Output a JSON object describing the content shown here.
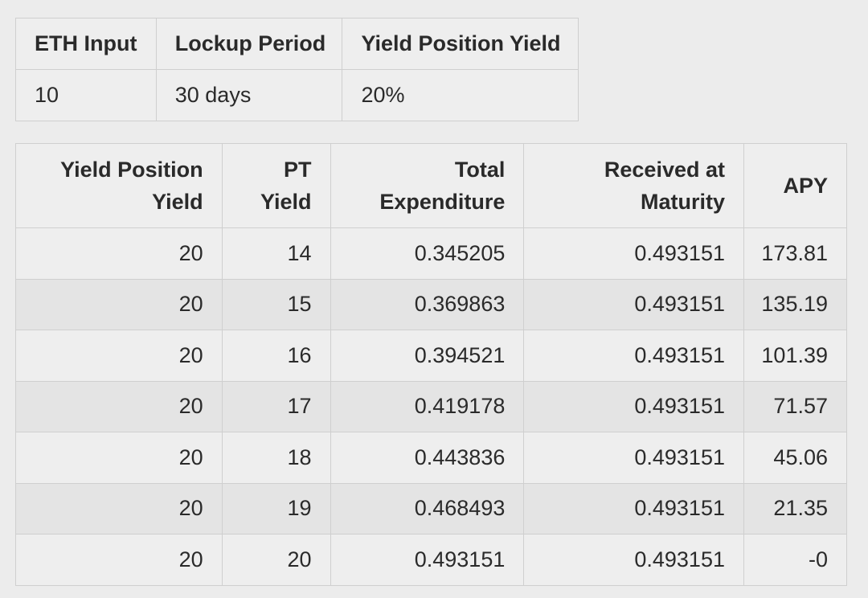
{
  "summary": {
    "headers": [
      "ETH Input",
      "Lockup Period",
      "Yield Position Yield"
    ],
    "values": [
      "10",
      "30 days",
      "20%"
    ]
  },
  "results": {
    "headers": [
      [
        "Yield Position",
        "Yield"
      ],
      [
        "PT",
        "Yield"
      ],
      [
        "Total",
        "Expenditure"
      ],
      [
        "Received at",
        "Maturity"
      ],
      [
        "APY"
      ]
    ],
    "rows": [
      [
        "20",
        "14",
        "0.345205",
        "0.493151",
        "173.81"
      ],
      [
        "20",
        "15",
        "0.369863",
        "0.493151",
        "135.19"
      ],
      [
        "20",
        "16",
        "0.394521",
        "0.493151",
        "101.39"
      ],
      [
        "20",
        "17",
        "0.419178",
        "0.493151",
        "71.57"
      ],
      [
        "20",
        "18",
        "0.443836",
        "0.493151",
        "45.06"
      ],
      [
        "20",
        "19",
        "0.468493",
        "0.493151",
        "21.35"
      ],
      [
        "20",
        "20",
        "0.493151",
        "0.493151",
        "-0"
      ]
    ]
  }
}
